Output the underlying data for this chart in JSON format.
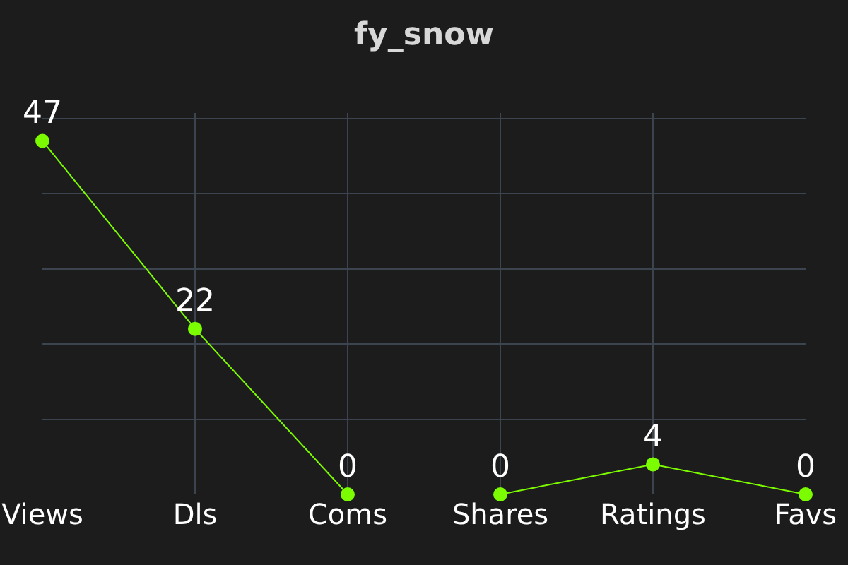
{
  "chart_data": {
    "type": "line",
    "title": "fy_snow",
    "categories": [
      "Views",
      "Dls",
      "Coms",
      "Shares",
      "Ratings",
      "Favs"
    ],
    "series": [
      {
        "color": "#7cfc00",
        "values": [
          47,
          22,
          0,
          0,
          4,
          0
        ]
      }
    ],
    "data_labels": true,
    "grid": true,
    "marker": "circle",
    "tick_labels": "x",
    "legend": false,
    "line_style": "solid"
  }
}
